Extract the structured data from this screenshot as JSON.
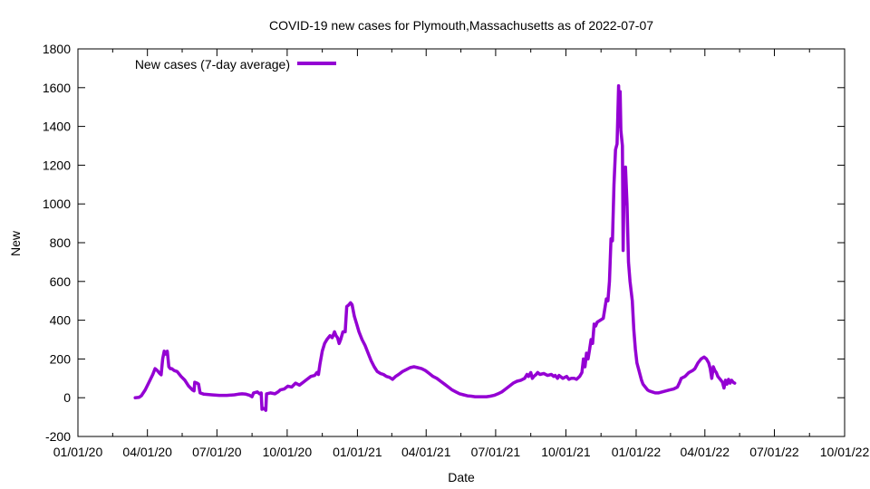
{
  "chart_data": {
    "type": "line",
    "title": "COVID-19 new cases for Plymouth,Massachusetts as of 2022-07-07",
    "xlabel": "Date",
    "ylabel": "New",
    "ylim": [
      -200,
      1800
    ],
    "yticks": [
      -200,
      0,
      200,
      400,
      600,
      800,
      1000,
      1200,
      1400,
      1600,
      1800
    ],
    "xlim_days": [
      0,
      1004
    ],
    "xticks": [
      {
        "label": "01/01/20",
        "day": 0
      },
      {
        "label": "04/01/20",
        "day": 91
      },
      {
        "label": "07/01/20",
        "day": 182
      },
      {
        "label": "10/01/20",
        "day": 274
      },
      {
        "label": "01/01/21",
        "day": 366
      },
      {
        "label": "04/01/21",
        "day": 456
      },
      {
        "label": "07/01/21",
        "day": 547
      },
      {
        "label": "10/01/21",
        "day": 639
      },
      {
        "label": "01/01/22",
        "day": 731
      },
      {
        "label": "04/01/22",
        "day": 821
      },
      {
        "label": "07/01/22",
        "day": 912
      },
      {
        "label": "10/01/22",
        "day": 1004
      }
    ],
    "grid": false,
    "legend_position": "top-left",
    "series": [
      {
        "name": "New cases (7-day average)",
        "color": "#9400d3",
        "points": [
          [
            75,
            0
          ],
          [
            80,
            2
          ],
          [
            83,
            10
          ],
          [
            88,
            40
          ],
          [
            93,
            80
          ],
          [
            98,
            120
          ],
          [
            101,
            150
          ],
          [
            104,
            140
          ],
          [
            107,
            125
          ],
          [
            109,
            118
          ],
          [
            111,
            200
          ],
          [
            113,
            240
          ],
          [
            115,
            225
          ],
          [
            117,
            240
          ],
          [
            119,
            160
          ],
          [
            121,
            150
          ],
          [
            123,
            150
          ],
          [
            126,
            140
          ],
          [
            130,
            135
          ],
          [
            135,
            110
          ],
          [
            140,
            90
          ],
          [
            145,
            60
          ],
          [
            150,
            40
          ],
          [
            152,
            35
          ],
          [
            153,
            80
          ],
          [
            156,
            75
          ],
          [
            158,
            70
          ],
          [
            160,
            25
          ],
          [
            165,
            18
          ],
          [
            175,
            15
          ],
          [
            185,
            12
          ],
          [
            195,
            12
          ],
          [
            205,
            15
          ],
          [
            210,
            18
          ],
          [
            215,
            20
          ],
          [
            220,
            18
          ],
          [
            225,
            12
          ],
          [
            228,
            5
          ],
          [
            230,
            25
          ],
          [
            235,
            30
          ],
          [
            238,
            20
          ],
          [
            240,
            25
          ],
          [
            241,
            -60
          ],
          [
            243,
            -55
          ],
          [
            245,
            -60
          ],
          [
            246,
            -65
          ],
          [
            247,
            20
          ],
          [
            252,
            25
          ],
          [
            258,
            20
          ],
          [
            262,
            30
          ],
          [
            265,
            40
          ],
          [
            270,
            45
          ],
          [
            275,
            60
          ],
          [
            280,
            55
          ],
          [
            285,
            75
          ],
          [
            290,
            65
          ],
          [
            295,
            80
          ],
          [
            300,
            95
          ],
          [
            305,
            110
          ],
          [
            310,
            115
          ],
          [
            313,
            130
          ],
          [
            315,
            120
          ],
          [
            317,
            175
          ],
          [
            320,
            240
          ],
          [
            323,
            280
          ],
          [
            326,
            300
          ],
          [
            330,
            320
          ],
          [
            333,
            310
          ],
          [
            336,
            340
          ],
          [
            338,
            320
          ],
          [
            340,
            310
          ],
          [
            342,
            280
          ],
          [
            344,
            300
          ],
          [
            347,
            340
          ],
          [
            350,
            340
          ],
          [
            352,
            470
          ],
          [
            355,
            480
          ],
          [
            357,
            490
          ],
          [
            359,
            480
          ],
          [
            362,
            420
          ],
          [
            365,
            380
          ],
          [
            368,
            340
          ],
          [
            372,
            300
          ],
          [
            376,
            270
          ],
          [
            380,
            230
          ],
          [
            384,
            190
          ],
          [
            388,
            160
          ],
          [
            392,
            135
          ],
          [
            396,
            125
          ],
          [
            400,
            120
          ],
          [
            404,
            110
          ],
          [
            408,
            105
          ],
          [
            412,
            95
          ],
          [
            416,
            110
          ],
          [
            420,
            120
          ],
          [
            425,
            135
          ],
          [
            430,
            145
          ],
          [
            435,
            155
          ],
          [
            440,
            160
          ],
          [
            445,
            155
          ],
          [
            450,
            150
          ],
          [
            455,
            140
          ],
          [
            460,
            125
          ],
          [
            465,
            110
          ],
          [
            470,
            100
          ],
          [
            475,
            85
          ],
          [
            480,
            70
          ],
          [
            485,
            55
          ],
          [
            490,
            40
          ],
          [
            495,
            30
          ],
          [
            500,
            20
          ],
          [
            505,
            15
          ],
          [
            510,
            10
          ],
          [
            515,
            8
          ],
          [
            520,
            5
          ],
          [
            525,
            5
          ],
          [
            530,
            5
          ],
          [
            535,
            5
          ],
          [
            540,
            8
          ],
          [
            545,
            12
          ],
          [
            550,
            20
          ],
          [
            555,
            30
          ],
          [
            560,
            45
          ],
          [
            565,
            60
          ],
          [
            570,
            75
          ],
          [
            575,
            85
          ],
          [
            580,
            90
          ],
          [
            585,
            100
          ],
          [
            588,
            120
          ],
          [
            590,
            110
          ],
          [
            593,
            130
          ],
          [
            595,
            100
          ],
          [
            597,
            110
          ],
          [
            600,
            120
          ],
          [
            602,
            130
          ],
          [
            605,
            120
          ],
          [
            610,
            125
          ],
          [
            615,
            115
          ],
          [
            620,
            120
          ],
          [
            623,
            110
          ],
          [
            625,
            115
          ],
          [
            628,
            100
          ],
          [
            630,
            115
          ],
          [
            635,
            100
          ],
          [
            640,
            110
          ],
          [
            643,
            95
          ],
          [
            646,
            100
          ],
          [
            650,
            100
          ],
          [
            653,
            95
          ],
          [
            657,
            110
          ],
          [
            660,
            130
          ],
          [
            662,
            200
          ],
          [
            664,
            160
          ],
          [
            666,
            230
          ],
          [
            668,
            200
          ],
          [
            670,
            250
          ],
          [
            672,
            300
          ],
          [
            674,
            280
          ],
          [
            676,
            380
          ],
          [
            678,
            370
          ],
          [
            680,
            390
          ],
          [
            684,
            400
          ],
          [
            688,
            410
          ],
          [
            690,
            460
          ],
          [
            692,
            510
          ],
          [
            694,
            500
          ],
          [
            696,
            600
          ],
          [
            698,
            820
          ],
          [
            700,
            810
          ],
          [
            702,
            1100
          ],
          [
            704,
            1280
          ],
          [
            706,
            1310
          ],
          [
            708,
            1610
          ],
          [
            709,
            1400
          ],
          [
            710,
            1580
          ],
          [
            711,
            1380
          ],
          [
            713,
            1300
          ],
          [
            714,
            760
          ],
          [
            715,
            1050
          ],
          [
            716,
            1000
          ],
          [
            717,
            1190
          ],
          [
            718,
            1100
          ],
          [
            719,
            1000
          ],
          [
            721,
            700
          ],
          [
            723,
            600
          ],
          [
            726,
            500
          ],
          [
            728,
            350
          ],
          [
            730,
            250
          ],
          [
            732,
            180
          ],
          [
            734,
            150
          ],
          [
            736,
            120
          ],
          [
            738,
            90
          ],
          [
            740,
            70
          ],
          [
            742,
            60
          ],
          [
            744,
            50
          ],
          [
            746,
            40
          ],
          [
            748,
            35
          ],
          [
            752,
            30
          ],
          [
            756,
            25
          ],
          [
            760,
            25
          ],
          [
            765,
            30
          ],
          [
            770,
            35
          ],
          [
            775,
            40
          ],
          [
            780,
            45
          ],
          [
            785,
            55
          ],
          [
            788,
            80
          ],
          [
            790,
            100
          ],
          [
            795,
            110
          ],
          [
            800,
            130
          ],
          [
            805,
            140
          ],
          [
            808,
            150
          ],
          [
            812,
            180
          ],
          [
            816,
            200
          ],
          [
            820,
            210
          ],
          [
            823,
            200
          ],
          [
            826,
            180
          ],
          [
            828,
            150
          ],
          [
            830,
            100
          ],
          [
            832,
            160
          ],
          [
            834,
            140
          ],
          [
            836,
            130
          ],
          [
            838,
            110
          ],
          [
            840,
            100
          ],
          [
            842,
            90
          ],
          [
            844,
            80
          ],
          [
            846,
            50
          ],
          [
            848,
            90
          ],
          [
            850,
            70
          ],
          [
            852,
            95
          ],
          [
            854,
            75
          ],
          [
            856,
            90
          ],
          [
            858,
            80
          ],
          [
            860,
            75
          ]
        ]
      }
    ]
  }
}
